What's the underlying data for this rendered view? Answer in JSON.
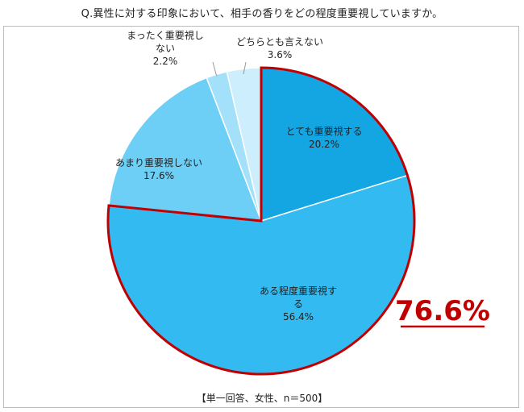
{
  "title": "Q.異性に対する印象において、相手の香りをどの程度重要視していますか。",
  "note": "【単一回答、女性、n＝500】",
  "highlight": {
    "label": "76.6%",
    "color": "#c00000"
  },
  "chart_data": {
    "type": "pie",
    "title": "Q.異性に対する印象において、相手の香りをどの程度重要視していますか。",
    "start": "12 o'clock, clockwise",
    "slices": [
      {
        "label": "とても重要視する",
        "lines": [
          "とても重要視する"
        ],
        "value": 20.2,
        "value_label": "20.2%",
        "color": "#13a6e3",
        "highlighted": true
      },
      {
        "label": "ある程度重要視する",
        "lines": [
          "ある程度重要視す",
          "る"
        ],
        "value": 56.4,
        "value_label": "56.4%",
        "color": "#33baf0",
        "highlighted": true
      },
      {
        "label": "あまり重要視しない",
        "lines": [
          "あまり重要視しない"
        ],
        "value": 17.6,
        "value_label": "17.6%",
        "color": "#6dcff6",
        "highlighted": false
      },
      {
        "label": "まったく重要視しない",
        "lines": [
          "まったく重要視し",
          "ない"
        ],
        "value": 2.2,
        "value_label": "2.2%",
        "color": "#a3e0f9",
        "highlighted": false
      },
      {
        "label": "どちらとも言えない",
        "lines": [
          "どちらとも言えない"
        ],
        "value": 3.6,
        "value_label": "3.6%",
        "color": "#cdeefc",
        "highlighted": false
      }
    ],
    "highlight_total": "76.6%",
    "note": "【単一回答、女性、n＝500】"
  }
}
